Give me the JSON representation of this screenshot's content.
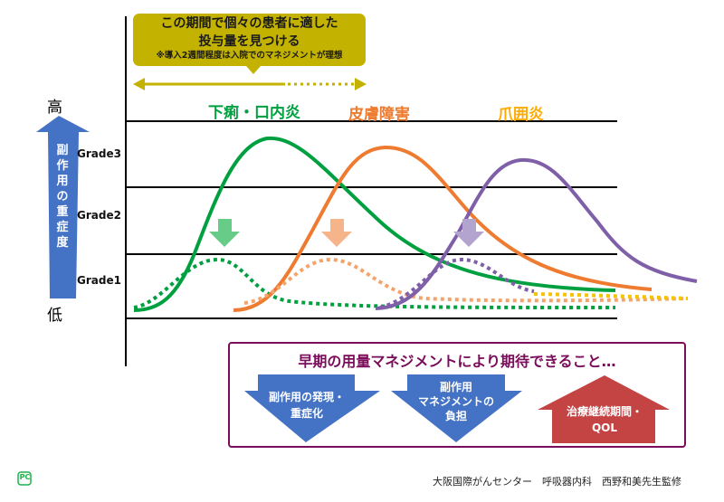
{
  "callout": {
    "line1": "この期間で個々の患者に適した",
    "line2": "投与量を見つける",
    "note": "※導入2週間程度は入院でのマネジメントが理想"
  },
  "axis": {
    "high": "高",
    "low": "低",
    "arrow_label": [
      "副",
      "作",
      "用",
      "の",
      "重",
      "症",
      "度"
    ],
    "grades": [
      "Grade3",
      "Grade2",
      "Grade1"
    ]
  },
  "series": [
    {
      "label": "下痢・口内炎",
      "color": "#00a040"
    },
    {
      "label": "皮膚障害",
      "color": "#ee7b30"
    },
    {
      "label": "爪囲炎",
      "color": "#ffaa00"
    }
  ],
  "colors": {
    "purple": "#7f5fa8",
    "yellow_dotted": "#f5c400",
    "callout": "#c3b300",
    "box_border": "#7a0c5a",
    "blue_arrow": "#4472c4",
    "red_arrow": "#c44444"
  },
  "expectations": {
    "title": "早期の用量マネジメントにより期待できること…",
    "items": [
      {
        "line1": "副作用の発現・",
        "line2": "重症化",
        "direction": "down"
      },
      {
        "line1": "副作用",
        "line2": "マネジメントの",
        "line3": "負担",
        "direction": "down"
      },
      {
        "line1": "治療継続期間・",
        "line2": "QOL",
        "direction": "up"
      }
    ]
  },
  "footer": {
    "logo": "PC",
    "credit": "大阪国際がんセンター　呼吸器内科　西野和美先生監修"
  }
}
